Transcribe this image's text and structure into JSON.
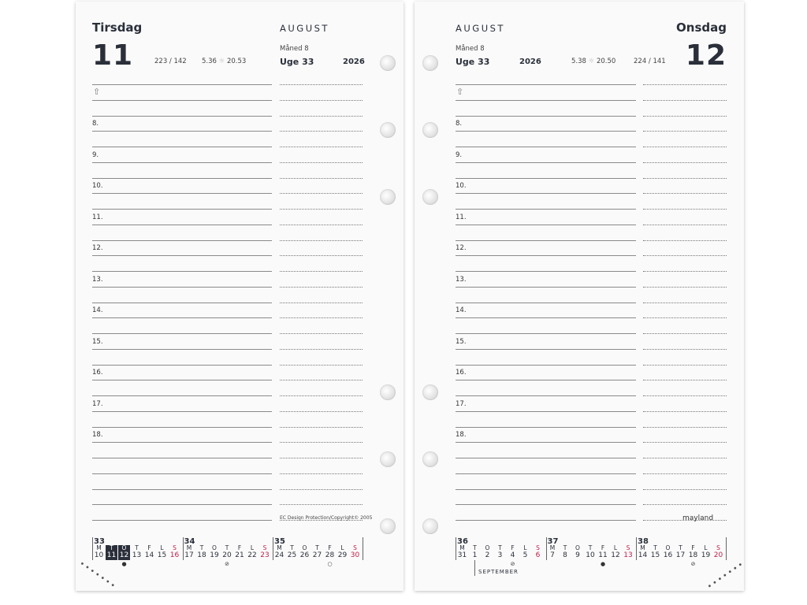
{
  "left_page": {
    "day_name": "Tirsdag",
    "day_number": "11",
    "day_count": "223 / 142",
    "sunrise": "5.36",
    "sunset": "20.53",
    "month": "AUGUST",
    "month_label": "Måned 8",
    "week_label": "Uge 33",
    "year": "2026",
    "footer": "EC Design Protection/Copyright© 2005"
  },
  "right_page": {
    "day_name": "Onsdag",
    "day_number": "12",
    "day_count": "224 / 141",
    "sunrise": "5.38",
    "sunset": "20.50",
    "month": "AUGUST",
    "month_label": "Måned 8",
    "week_label": "Uge 33",
    "year": "2026",
    "brand": "mayland"
  },
  "hours": [
    "8.",
    "9.",
    "10.",
    "11.",
    "12.",
    "13.",
    "14.",
    "15.",
    "16.",
    "17.",
    "18."
  ],
  "weekday_letters": [
    "M",
    "T",
    "O",
    "T",
    "F",
    "L",
    "S"
  ],
  "icons": {
    "person": "person-outline-icon",
    "sun": "sun-icon",
    "moon_full": "full-moon-dot",
    "moon_new": "new-moon-circle",
    "moon_quarter": "quarter-moon-icon"
  },
  "colors": {
    "text": "#2a2f3a",
    "sunday": "#c0204a",
    "highlight": "#2a2f3a"
  },
  "left_calendar": [
    {
      "week": "33",
      "days": [
        "10",
        "11",
        "12",
        "13",
        "14",
        "15",
        "16"
      ],
      "highlight": [
        "11",
        "12"
      ],
      "markers": {
        "12": "●"
      }
    },
    {
      "week": "34",
      "days": [
        "17",
        "18",
        "19",
        "20",
        "21",
        "22",
        "23"
      ],
      "markers": {
        "20": "⊘"
      }
    },
    {
      "week": "35",
      "days": [
        "24",
        "25",
        "26",
        "27",
        "28",
        "29",
        "30"
      ],
      "markers": {
        "28": "○"
      }
    }
  ],
  "right_calendar": [
    {
      "week": "36",
      "days": [
        "31",
        "1",
        "2",
        "3",
        "4",
        "5",
        "6"
      ],
      "markers": {
        "4": "⊘"
      }
    },
    {
      "week": "37",
      "days": [
        "7",
        "8",
        "9",
        "10",
        "11",
        "12",
        "13"
      ],
      "markers": {
        "11": "●"
      }
    },
    {
      "week": "38",
      "days": [
        "14",
        "15",
        "16",
        "17",
        "18",
        "19",
        "20"
      ],
      "markers": {
        "18": "⊘"
      }
    }
  ],
  "next_month_label": "SEPTEMBER"
}
